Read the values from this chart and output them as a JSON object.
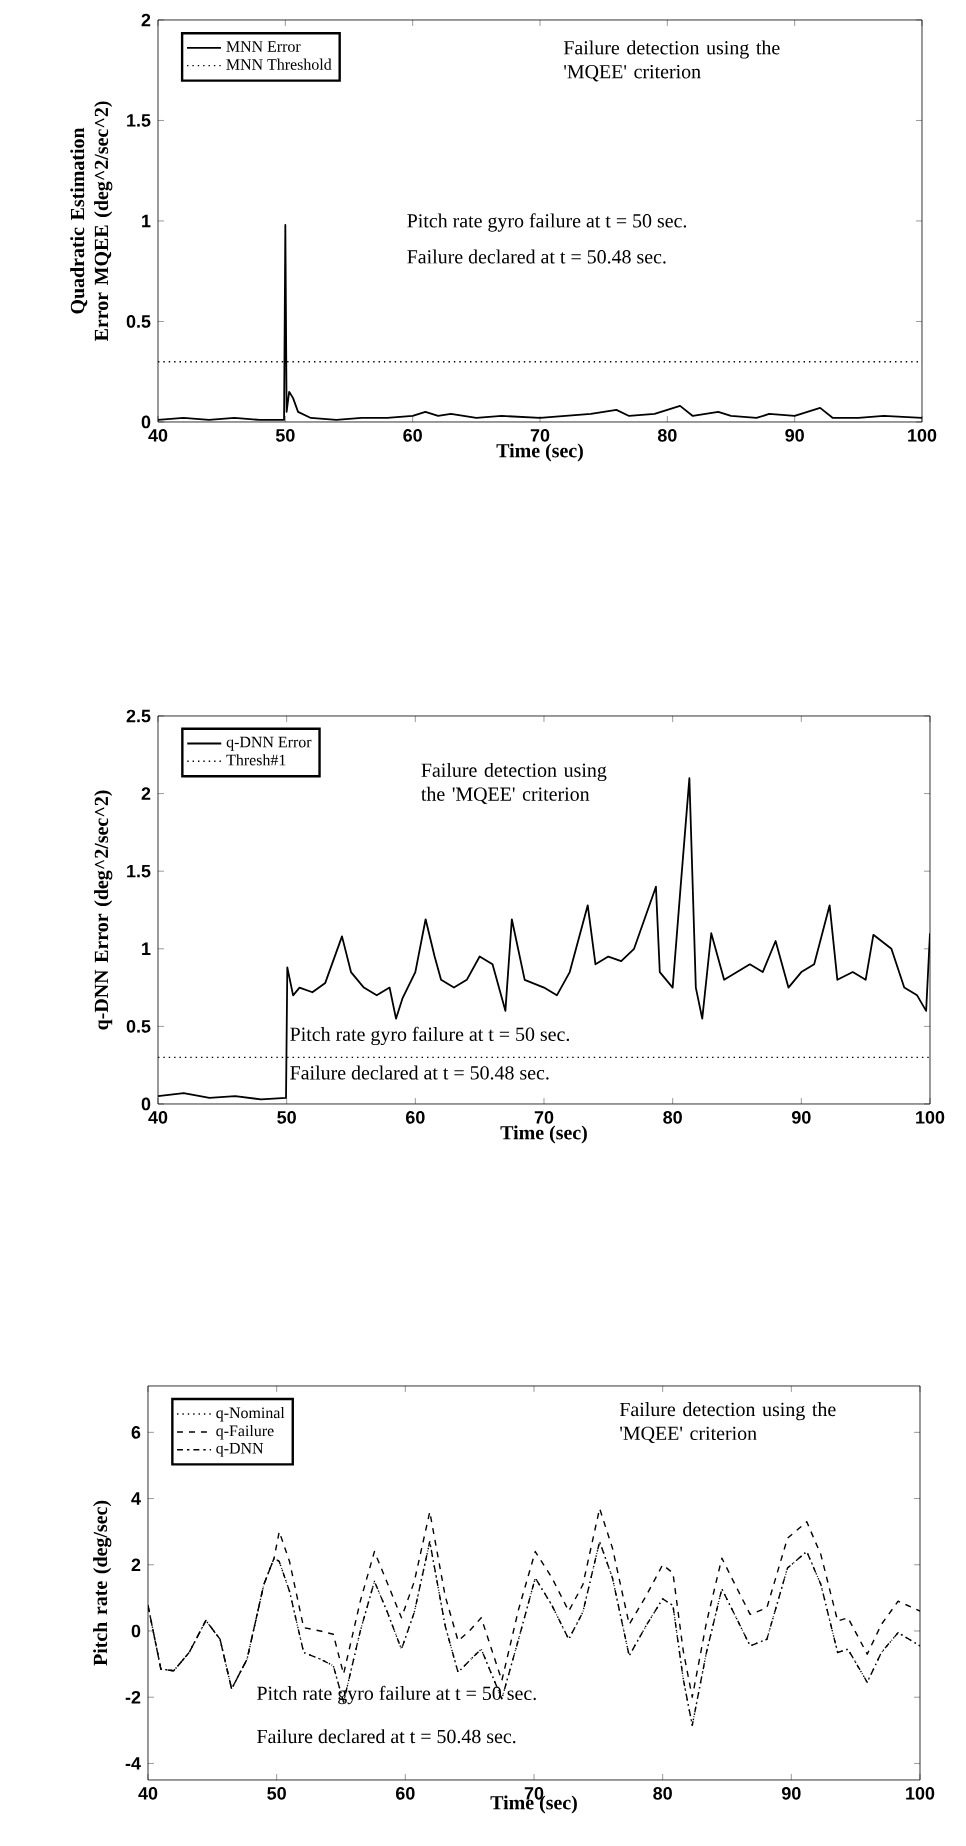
{
  "chart_data": [
    {
      "type": "line",
      "xlabel": "Time (sec)",
      "ylabel": "Quadratic Estimation Error MQEE (deg^2/sec^2)",
      "xlim": [
        40,
        100
      ],
      "ylim": [
        0,
        2
      ],
      "xticks": [
        40,
        50,
        60,
        70,
        80,
        90,
        100
      ],
      "yticks": [
        0,
        {
          "value": 0.5,
          "label": "0.5"
        },
        1,
        {
          "value": 1.5,
          "label": "1.5"
        },
        2
      ],
      "legend": "top left",
      "annotations": [
        "Failure detection using the 'MQEE' criterion",
        "Pitch rate gyro failure at t = 50 sec.",
        "Failure declared at t = 50.48 sec."
      ],
      "series": [
        {
          "name": "MNN Error",
          "color": "#000000",
          "line_style": "solid",
          "x": [
            40,
            42,
            44,
            46,
            48,
            49.9,
            50,
            50.1,
            50.3,
            50.6,
            51,
            52,
            54,
            56,
            58,
            60,
            61,
            62,
            63,
            65,
            67,
            70,
            72,
            74,
            76,
            77,
            79,
            81,
            82,
            84,
            85,
            87,
            88,
            90,
            92,
            93,
            95,
            97,
            100
          ],
          "values": [
            0.01,
            0.02,
            0.01,
            0.02,
            0.01,
            0.01,
            0.98,
            0.05,
            0.15,
            0.12,
            0.05,
            0.02,
            0.01,
            0.02,
            0.02,
            0.03,
            0.05,
            0.03,
            0.04,
            0.02,
            0.03,
            0.02,
            0.03,
            0.04,
            0.06,
            0.03,
            0.04,
            0.08,
            0.03,
            0.05,
            0.03,
            0.02,
            0.04,
            0.03,
            0.07,
            0.02,
            0.02,
            0.03,
            0.02
          ]
        },
        {
          "name": "MNN Threshold",
          "color": "#000000",
          "line_style": "dotted",
          "x": [
            40,
            100
          ],
          "values": [
            0.3,
            0.3
          ]
        }
      ]
    },
    {
      "type": "line",
      "xlabel": "Time (sec)",
      "ylabel": "q-DNN Error (deg^2/sec^2)",
      "xlim": [
        40,
        100
      ],
      "ylim": [
        0,
        2.5
      ],
      "xticks": [
        40,
        50,
        60,
        70,
        80,
        90,
        100
      ],
      "yticks": [
        0,
        {
          "value": 0.5,
          "label": "0.5"
        },
        1,
        {
          "value": 1.5,
          "label": "1.5"
        },
        2,
        {
          "value": 2.5,
          "label": "2.5"
        }
      ],
      "legend": "top left",
      "annotations": [
        "Failure detection using the 'MQEE' criterion",
        "Pitch rate gyro failure at t = 50 sec.",
        "Failure declared at t = 50.48 sec."
      ],
      "series": [
        {
          "name": "q-DNN Error",
          "color": "#000000",
          "line_style": "solid",
          "x": [
            40,
            42,
            44,
            46,
            48,
            49.95,
            50.05,
            50.5,
            51,
            52,
            53,
            54.3,
            55,
            56,
            57,
            58,
            58.5,
            59,
            60,
            60.8,
            61.5,
            62,
            63,
            64,
            65,
            66,
            67,
            67.5,
            68.5,
            70,
            71,
            72,
            73.4,
            74,
            75,
            76,
            77,
            78.7,
            79,
            80,
            80.6,
            81.3,
            81.8,
            82.3,
            83,
            84,
            85,
            86,
            87,
            88,
            89,
            90,
            91,
            92.2,
            92.8,
            94,
            95,
            95.6,
            97,
            98,
            99,
            99.7,
            100
          ],
          "values": [
            0.05,
            0.07,
            0.04,
            0.05,
            0.03,
            0.04,
            0.88,
            0.7,
            0.75,
            0.72,
            0.78,
            1.08,
            0.85,
            0.75,
            0.7,
            0.75,
            0.55,
            0.68,
            0.85,
            1.19,
            0.95,
            0.8,
            0.75,
            0.8,
            0.95,
            0.9,
            0.6,
            1.19,
            0.8,
            0.75,
            0.7,
            0.85,
            1.28,
            0.9,
            0.95,
            0.92,
            1.0,
            1.4,
            0.85,
            0.75,
            1.38,
            2.1,
            0.75,
            0.55,
            1.1,
            0.8,
            0.85,
            0.9,
            0.85,
            1.05,
            0.75,
            0.85,
            0.9,
            1.28,
            0.8,
            0.85,
            0.8,
            1.09,
            1.0,
            0.75,
            0.7,
            0.6,
            1.1
          ]
        },
        {
          "name": "Thresh#1",
          "color": "#000000",
          "line_style": "dotted",
          "x": [
            40,
            100
          ],
          "values": [
            0.3,
            0.3
          ]
        }
      ]
    },
    {
      "type": "line",
      "xlabel": "Time (sec)",
      "ylabel": "Pitch rate (deg/sec)",
      "xlim": [
        40,
        100
      ],
      "ylim": [
        -4.5,
        7.4
      ],
      "xticks": [
        40,
        50,
        60,
        70,
        80,
        90,
        100
      ],
      "yticks": [
        -4,
        -2,
        0,
        2,
        4,
        6
      ],
      "legend": "top left",
      "annotations": [
        "Failure detection using the 'MQEE' criterion",
        "Pitch rate gyro failure at t = 50 sec.",
        "Failure declared at t = 50.48 sec."
      ],
      "series": [
        {
          "name": "q-Nominal",
          "color": "#000000",
          "line_style": "dotted",
          "x": [
            40,
            41,
            42,
            43.2,
            44.5,
            45.6,
            46.5,
            47.7,
            49,
            49.8,
            50.2,
            51,
            52.1,
            53.4,
            54.4,
            55.2,
            56.5,
            57.6,
            58.6,
            59.7,
            60.7,
            61.9,
            63.1,
            64.1,
            65.1,
            65.9,
            67.5,
            68.8,
            70.1,
            71.4,
            72.7,
            73.8,
            75.1,
            76.1,
            77.4,
            78.7,
            80,
            80.8,
            81.6,
            82.3,
            83.4,
            84.6,
            85.5,
            86.8,
            88.1,
            89.7,
            91.2,
            92.3,
            93.6,
            94.4,
            95.9,
            97,
            98.3,
            100
          ],
          "values": [
            0.77,
            -1.15,
            -1.2,
            -0.65,
            0.32,
            -0.25,
            -1.75,
            -0.85,
            1.4,
            2.2,
            2.1,
            1.2,
            -0.65,
            -0.85,
            -1.05,
            -2.15,
            0,
            1.5,
            0.57,
            -0.55,
            0.57,
            2.7,
            0.15,
            -1.25,
            -0.85,
            -0.55,
            -2.05,
            -0.25,
            1.6,
            0.77,
            -0.25,
            0.57,
            2.7,
            1.6,
            -0.75,
            0.15,
            0.97,
            0.77,
            -1.45,
            -2.85,
            -0.65,
            1.27,
            0.57,
            -0.45,
            -0.25,
            1.9,
            2.4,
            1.4,
            -0.65,
            -0.55,
            -1.55,
            -0.65,
            -0.05,
            -0.45
          ]
        },
        {
          "name": "q-Failure",
          "color": "#000000",
          "line_style": "dashed",
          "x": [
            40,
            41,
            42,
            43.2,
            44.5,
            45.6,
            46.5,
            47.7,
            49,
            49.8,
            50.2,
            51,
            52.1,
            53.4,
            54.4,
            55.2,
            56.5,
            57.6,
            58.6,
            59.7,
            60.7,
            61.9,
            63.1,
            64.1,
            65.1,
            65.9,
            67.5,
            68.8,
            70.1,
            71.4,
            72.7,
            73.8,
            75.1,
            76.1,
            77.4,
            78.7,
            80,
            80.8,
            81.6,
            82.3,
            83.4,
            84.6,
            85.5,
            86.8,
            88.1,
            89.7,
            91.2,
            92.3,
            93.6,
            94.4,
            95.9,
            97,
            98.3,
            100
          ],
          "values": [
            0.77,
            -1.15,
            -1.2,
            -0.65,
            0.32,
            -0.25,
            -1.75,
            -0.85,
            1.4,
            2.2,
            3.0,
            2.1,
            0.1,
            0.0,
            -0.1,
            -1.3,
            0.9,
            2.4,
            1.45,
            0.4,
            1.5,
            3.6,
            1.05,
            -0.3,
            0.05,
            0.4,
            -1.5,
            0.65,
            2.4,
            1.6,
            0.6,
            1.4,
            3.7,
            2.5,
            0.2,
            1.05,
            2.0,
            1.75,
            -0.6,
            -2.0,
            0.25,
            2.2,
            1.5,
            0.5,
            0.7,
            2.8,
            3.3,
            2.3,
            0.3,
            0.4,
            -0.7,
            0.2,
            0.9,
            0.6
          ]
        },
        {
          "name": "q-DNN",
          "color": "#000000",
          "line_style": "dashdot",
          "x": [
            40,
            41,
            42,
            43.2,
            44.5,
            45.6,
            46.5,
            47.7,
            49,
            49.8,
            50.2,
            51,
            52.1,
            53.4,
            54.4,
            55.2,
            56.5,
            57.6,
            58.6,
            59.7,
            60.7,
            61.9,
            63.1,
            64.1,
            65.1,
            65.9,
            67.5,
            68.8,
            70.1,
            71.4,
            72.7,
            73.8,
            75.1,
            76.1,
            77.4,
            78.7,
            80,
            80.8,
            81.6,
            82.3,
            83.4,
            84.6,
            85.5,
            86.8,
            88.1,
            89.7,
            91.2,
            92.3,
            93.6,
            94.4,
            95.9,
            97,
            98.3,
            100
          ],
          "values": [
            0.77,
            -1.15,
            -1.2,
            -0.65,
            0.32,
            -0.25,
            -1.75,
            -0.85,
            1.4,
            2.2,
            2.1,
            1.2,
            -0.65,
            -0.85,
            -1.05,
            -2.15,
            0,
            1.5,
            0.57,
            -0.55,
            0.57,
            2.7,
            0.15,
            -1.25,
            -0.85,
            -0.55,
            -2.05,
            -0.25,
            1.6,
            0.77,
            -0.25,
            0.57,
            2.7,
            1.6,
            -0.75,
            0.15,
            0.97,
            0.77,
            -1.45,
            -2.85,
            -0.65,
            1.27,
            0.57,
            -0.45,
            -0.25,
            1.9,
            2.4,
            1.4,
            -0.65,
            -0.55,
            -1.55,
            -0.65,
            -0.05,
            -0.45
          ]
        }
      ]
    }
  ]
}
